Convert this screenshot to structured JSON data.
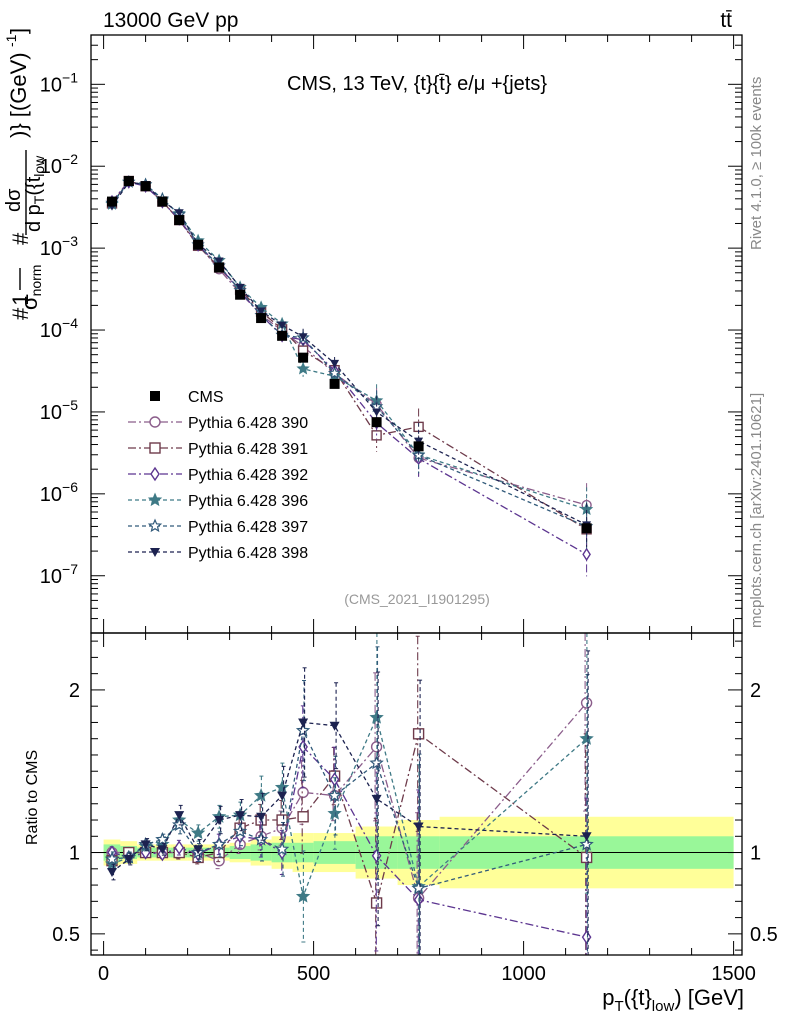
{
  "header": {
    "left": "13000 GeV pp",
    "right": "tt̄",
    "side_top": "Rivet 4.1.0, ≥ 100k events",
    "side_bottom": "mcplots.cern.ch [arXiv:2401.10621]"
  },
  "chart_data": {
    "type": "scatter",
    "title": "CMS, 13 TeV, {t}{t̄} e/μ +{jets}",
    "watermark": "(CMS_2021_I1901295)",
    "xlabel": "p_T({t}_low) [GeV]",
    "ylabel_top": "#1/σ_norm #dσ/d p_T({t}_low)} [(GeV)^-1]",
    "ylabel_ratio": "Ratio to CMS",
    "xlim": [
      -30,
      1520
    ],
    "ylim_top": [
      2e-08,
      0.4
    ],
    "ylim_ratio": [
      0.37,
      2.35
    ],
    "x_ticks": [
      0,
      500,
      1000,
      1500
    ],
    "y_ticks_top": [
      "10^-7",
      "10^-6",
      "10^-5",
      "10^-4",
      "10^-3",
      "10^-2",
      "10^-1"
    ],
    "y_ticks_ratio": [
      "0.5",
      "1",
      "2"
    ],
    "x": [
      20,
      60,
      100,
      140,
      180,
      225,
      275,
      325,
      375,
      425,
      475,
      550,
      650,
      750,
      1150
    ],
    "band_edges": [
      0,
      40,
      80,
      120,
      160,
      200,
      250,
      300,
      350,
      400,
      450,
      500,
      600,
      700,
      800,
      1500
    ],
    "band_inner": [
      0.05,
      0.04,
      0.03,
      0.03,
      0.03,
      0.03,
      0.03,
      0.04,
      0.05,
      0.06,
      0.06,
      0.07,
      0.1,
      0.1,
      0.1
    ],
    "band_outer": [
      0.08,
      0.07,
      0.05,
      0.05,
      0.05,
      0.05,
      0.05,
      0.06,
      0.08,
      0.1,
      0.12,
      0.12,
      0.16,
      0.2,
      0.22
    ],
    "data_series": {
      "name": "CMS",
      "values": [
        0.0037,
        0.0066,
        0.0057,
        0.0037,
        0.0022,
        0.0011,
        0.00058,
        0.00027,
        0.00014,
        8.5e-05,
        4.6e-05,
        2.2e-05,
        7.5e-06,
        3.8e-06,
        3.8e-07
      ]
    },
    "series": [
      {
        "name": "Pythia 6.428 390",
        "color": "#8b5d8b",
        "marker": "circle-open",
        "dash": "8,3,2,3",
        "ratio": [
          1.0,
          1.0,
          1.0,
          1.0,
          1.0,
          1.0,
          0.95,
          1.05,
          1.1,
          1.15,
          1.37,
          1.35,
          1.65,
          0.72,
          1.92
        ]
      },
      {
        "name": "Pythia 6.428 391",
        "color": "#6e3b4b",
        "marker": "square-open",
        "dash": "8,3,2,3",
        "ratio": [
          0.95,
          1.0,
          1.0,
          1.0,
          1.0,
          0.97,
          1.0,
          1.15,
          1.2,
          1.2,
          1.22,
          1.47,
          0.69,
          1.73,
          0.97
        ]
      },
      {
        "name": "Pythia 6.428 392",
        "color": "#5c3590",
        "marker": "diamond-open",
        "dash": "8,3,2,3",
        "ratio": [
          1.0,
          0.97,
          1.0,
          0.99,
          1.03,
          0.99,
          1.05,
          1.1,
          1.08,
          1.0,
          1.65,
          1.45,
          0.98,
          0.71,
          0.48
        ]
      },
      {
        "name": "Pythia 6.428 396",
        "color": "#3f7a86",
        "marker": "star",
        "dash": "4,3",
        "ratio": [
          0.93,
          0.97,
          1.04,
          1.05,
          1.2,
          1.12,
          1.22,
          1.23,
          1.35,
          1.4,
          0.73,
          1.24,
          1.83,
          0.79,
          1.7
        ]
      },
      {
        "name": "Pythia 6.428 397",
        "color": "#315a7a",
        "marker": "star-open",
        "dash": "4,3",
        "ratio": [
          0.96,
          0.97,
          1.05,
          1.08,
          1.17,
          1.0,
          1.05,
          1.13,
          1.08,
          1.02,
          1.75,
          1.35,
          1.55,
          0.78,
          1.05
        ]
      },
      {
        "name": "Pythia 6.428 398",
        "color": "#1c2250",
        "marker": "triangle-down",
        "dash": "4,3",
        "ratio": [
          0.88,
          0.96,
          1.05,
          1.02,
          1.23,
          1.02,
          1.2,
          1.23,
          1.22,
          1.35,
          1.8,
          1.78,
          1.33,
          1.16,
          1.1
        ]
      }
    ],
    "ratio_errors": [
      0.04,
      0.03,
      0.03,
      0.03,
      0.05,
      0.05,
      0.07,
      0.08,
      0.12,
      0.15,
      0.28,
      0.22,
      0.65,
      0.75,
      0.95
    ]
  }
}
